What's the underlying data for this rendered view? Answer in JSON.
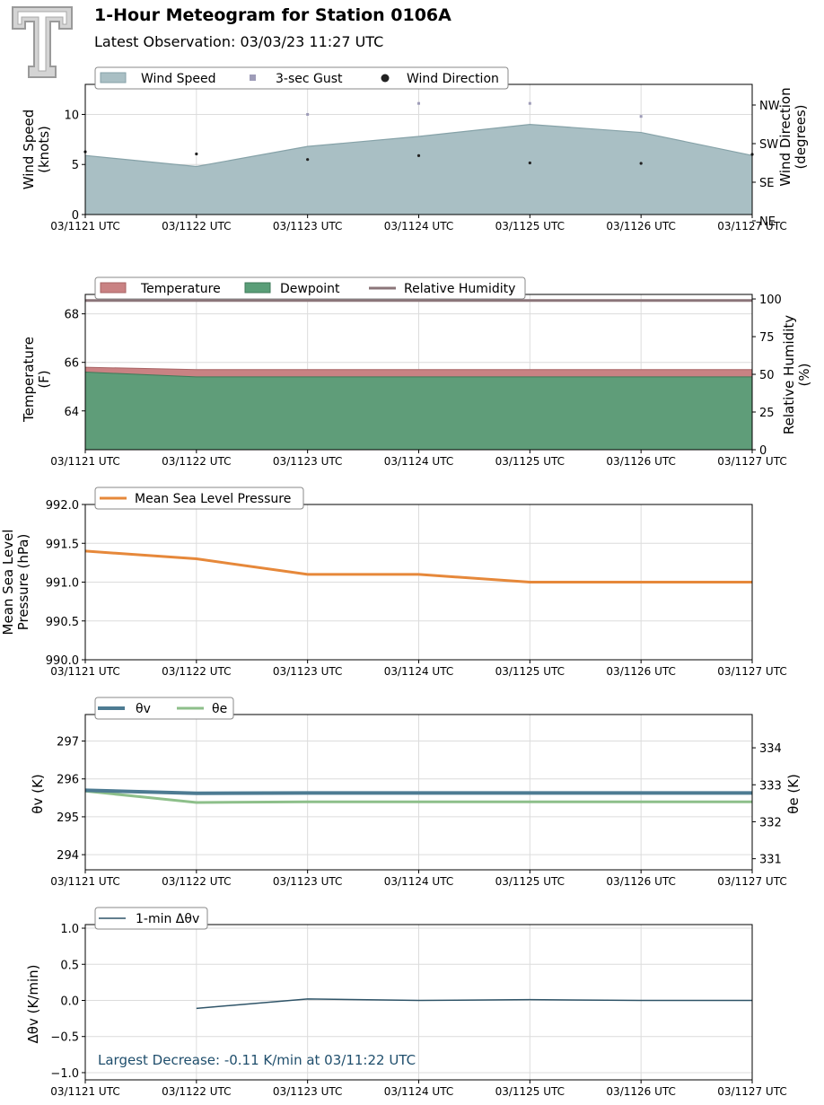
{
  "header": {
    "title": "1-Hour Meteogram for Station 0106A",
    "subtitle": "Latest Observation: 03/03/23 11:27 UTC"
  },
  "x_tick_labels": [
    "03/1121 UTC",
    "03/1122 UTC",
    "03/1123 UTC",
    "03/1124 UTC",
    "03/1125 UTC",
    "03/1126 UTC",
    "03/1127 UTC"
  ],
  "colors": {
    "wind_fill": "#a9bfc4",
    "wind_line": "#86a2a8",
    "gust": "#9e9cb8",
    "direction": "#222222",
    "temperature": "#c98283",
    "dewpoint": "#5a9e78",
    "rh": "#8b7579",
    "pressure": "#e6883a",
    "theta_v": "#4d7b92",
    "theta_e": "#8dbf8a",
    "delta": "#2f5468",
    "annotation": "#1f4e6c"
  },
  "chart_data": [
    {
      "type": "area",
      "id": "wind",
      "ylabel": [
        "Wind Speed",
        "(knots)"
      ],
      "ylabel2": [
        "Wind Direction",
        "(degrees)"
      ],
      "ylim": [
        0,
        13
      ],
      "yticks": [
        0,
        5,
        10
      ],
      "y2ticks": [
        "NE",
        "SE",
        "SW",
        "NW"
      ],
      "legend": [
        "Wind Speed",
        "3-sec Gust",
        "Wind Direction"
      ],
      "grid": true,
      "series": [
        {
          "name": "Wind Speed",
          "values": [
            5.9,
            4.8,
            6.8,
            7.8,
            9.0,
            8.2,
            5.9
          ]
        },
        {
          "name": "3-sec Gust",
          "values": [
            null,
            null,
            10.0,
            11.1,
            11.1,
            9.8,
            null
          ]
        },
        {
          "name": "Wind Direction",
          "values": [
            206,
            201,
            188,
            197,
            180,
            179,
            200
          ]
        }
      ]
    },
    {
      "type": "area",
      "id": "temp",
      "ylabel": [
        "Temperature",
        "(F)"
      ],
      "ylabel2": [
        "Relative Humidity",
        "(%)"
      ],
      "ylim": [
        62.4,
        68.8
      ],
      "yticks": [
        64,
        66,
        68
      ],
      "y2lim": [
        0,
        103
      ],
      "y2ticks": [
        0,
        25,
        50,
        75,
        100
      ],
      "legend": [
        "Temperature",
        "Dewpoint",
        "Relative Humidity"
      ],
      "grid": true,
      "series": [
        {
          "name": "Temperature",
          "values": [
            65.8,
            65.7,
            65.7,
            65.7,
            65.7,
            65.7,
            65.7
          ]
        },
        {
          "name": "Dewpoint",
          "values": [
            65.6,
            65.4,
            65.4,
            65.4,
            65.4,
            65.4,
            65.4
          ]
        },
        {
          "name": "Relative Humidity",
          "values": [
            99,
            99,
            99,
            99,
            99,
            99,
            99
          ]
        }
      ]
    },
    {
      "type": "line",
      "id": "pres",
      "ylabel": [
        "Mean Sea Level",
        "Pressure (hPa)"
      ],
      "ylim": [
        990.0,
        992.0
      ],
      "yticks": [
        "990.0",
        "990.5",
        "991.0",
        "991.5",
        "992.0"
      ],
      "legend": [
        "Mean Sea Level Pressure"
      ],
      "grid": true,
      "series": [
        {
          "name": "Mean Sea Level Pressure",
          "values": [
            991.4,
            991.3,
            991.1,
            991.1,
            991.0,
            991.0,
            991.0
          ]
        }
      ]
    },
    {
      "type": "line",
      "id": "theta",
      "ylabel": "θv (K)",
      "ylabel2": "θe (K)",
      "ylim": [
        293.6,
        297.7
      ],
      "yticks": [
        294,
        295,
        296,
        297
      ],
      "y2lim": [
        330.7,
        334.9
      ],
      "y2ticks": [
        331,
        332,
        333,
        334
      ],
      "legend": [
        "θv",
        "θe"
      ],
      "grid": true,
      "series": [
        {
          "name": "θv",
          "values": [
            295.7,
            295.62,
            295.63,
            295.63,
            295.63,
            295.63,
            295.63
          ]
        },
        {
          "name": "θe",
          "values": [
            332.83,
            332.52,
            332.54,
            332.54,
            332.54,
            332.54,
            332.54
          ]
        }
      ]
    },
    {
      "type": "line",
      "id": "delta",
      "ylabel": "Δθv (K/min)",
      "ylim": [
        -1.1,
        1.05
      ],
      "yticks": [
        "−1.0",
        "−0.5",
        "0.0",
        "0.5",
        "1.0"
      ],
      "legend": [
        "1-min Δθv"
      ],
      "grid": true,
      "annotation": "Largest Decrease: -0.11 K/min at 03/11:22 UTC",
      "series": [
        {
          "name": "1-min Δθv",
          "values": [
            null,
            -0.11,
            0.02,
            0.0,
            0.01,
            0.0,
            0.0
          ]
        }
      ]
    }
  ]
}
